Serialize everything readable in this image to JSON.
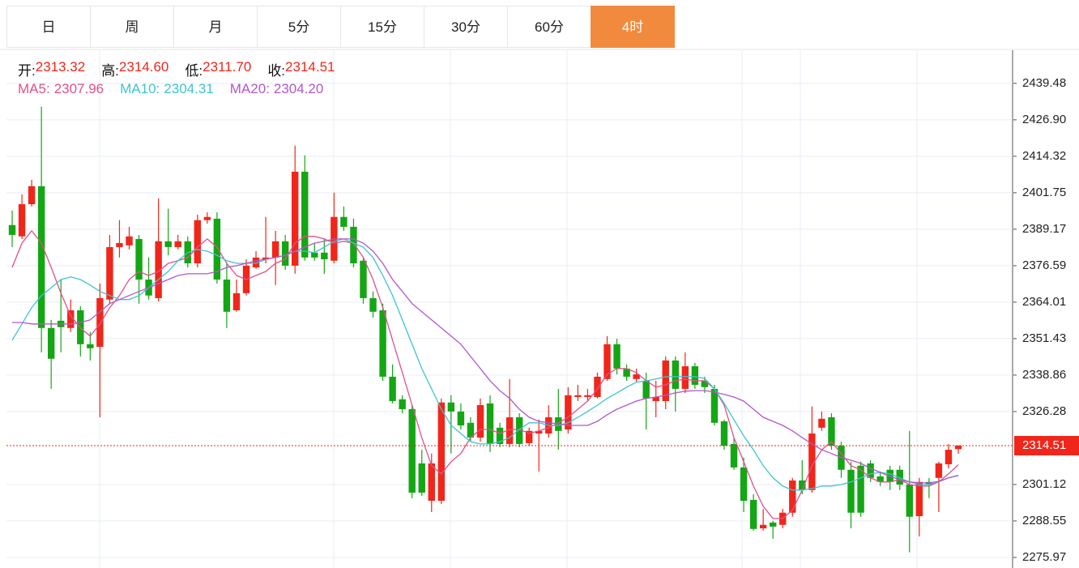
{
  "tabs": [
    "日",
    "周",
    "月",
    "5分",
    "15分",
    "30分",
    "60分",
    "4时"
  ],
  "active_tab": 7,
  "chart_data": {
    "type": "candlestick",
    "ohlc_labels": [
      "开:",
      "高:",
      "低:",
      "收:"
    ],
    "ohlc_value_labels": [
      "2313.32",
      "2314.60",
      "2311.70",
      "2314.51"
    ],
    "up_color": "#f0261b",
    "down_color": "#14a614",
    "label_color": "#111111",
    "open": [
      2390.6,
      2386.7,
      2397.8,
      2404.0,
      2355.1,
      2357.6,
      2355.1,
      2361.2,
      2349.5,
      2348.6,
      2364.9,
      2383.0,
      2383.6,
      2385.8,
      2371.8,
      2365.4,
      2385.0,
      2383.0,
      2385.0,
      2377.4,
      2392.3,
      2392.8,
      2371.8,
      2361.2,
      2367.1,
      2376.0,
      2378.8,
      2379.4,
      2385.0,
      2376.6,
      2409.0,
      2381.1,
      2381.1,
      2378.3,
      2393.4,
      2390.0,
      2378.3,
      2365.4,
      2361.2,
      2338.3,
      2330.5,
      2327.1,
      2308.4,
      2295.5,
      2295.5,
      2329.4,
      2326.3,
      2322.4,
      2317.3,
      2329.1,
      2320.7,
      2315.1,
      2324.3,
      2315.4,
      2318.7,
      2318.7,
      2324.3,
      2320.1,
      2331.3,
      2331.3,
      2331.3,
      2337.5,
      2349.5,
      2341.1,
      2337.5,
      2336.9,
      2329.9,
      2329.9,
      2343.9,
      2334.1,
      2341.9,
      2336.9,
      2334.1,
      2322.9,
      2315.1,
      2307.0,
      2295.8,
      2286.0,
      2288.0,
      2287.2,
      2291.4,
      2302.5,
      2299.2,
      2320.7,
      2324.3,
      2314.5,
      2306.2,
      2307.6,
      2308.4,
      2303.9,
      2306.2,
      2306.2,
      2301.1,
      2290.2,
      2302.0,
      2303.4,
      2308.1,
      2313.32
    ],
    "high": [
      2395.6,
      2401.2,
      2406.2,
      2431.4,
      2357.9,
      2371.8,
      2364.9,
      2362.6,
      2353.7,
      2370.4,
      2387.2,
      2392.3,
      2390.0,
      2387.2,
      2379.4,
      2399.8,
      2396.2,
      2387.2,
      2386.7,
      2394.2,
      2395.0,
      2395.0,
      2377.4,
      2371.8,
      2378.8,
      2381.6,
      2393.4,
      2388.6,
      2387.2,
      2418.0,
      2414.6,
      2384.4,
      2385.8,
      2401.8,
      2397.0,
      2392.8,
      2379.4,
      2367.7,
      2363.5,
      2342.5,
      2331.9,
      2328.5,
      2313.1,
      2311.8,
      2330.8,
      2331.9,
      2329.1,
      2324.3,
      2330.8,
      2331.9,
      2322.4,
      2337.5,
      2325.7,
      2320.7,
      2323.5,
      2328.5,
      2334.1,
      2334.7,
      2335.5,
      2334.1,
      2339.7,
      2352.3,
      2351.4,
      2342.5,
      2341.1,
      2339.7,
      2336.9,
      2345.3,
      2345.3,
      2346.7,
      2343.1,
      2338.3,
      2335.5,
      2323.5,
      2317.3,
      2310.4,
      2297.8,
      2292.7,
      2288.6,
      2292.7,
      2303.4,
      2309.5,
      2328.0,
      2326.3,
      2325.7,
      2315.9,
      2309.0,
      2309.0,
      2309.5,
      2305.6,
      2307.6,
      2307.6,
      2319.6,
      2303.4,
      2303.4,
      2309.0,
      2315.1,
      2314.6
    ],
    "low": [
      2383.0,
      2385.8,
      2397.0,
      2346.7,
      2334.1,
      2346.7,
      2353.7,
      2345.3,
      2343.9,
      2324.3,
      2363.5,
      2379.4,
      2382.2,
      2363.5,
      2364.9,
      2364.3,
      2380.2,
      2382.2,
      2376.0,
      2376.0,
      2391.1,
      2370.4,
      2355.1,
      2360.7,
      2366.3,
      2375.5,
      2377.4,
      2369.9,
      2375.2,
      2373.8,
      2378.3,
      2378.3,
      2373.8,
      2377.4,
      2388.6,
      2376.0,
      2363.5,
      2358.7,
      2336.9,
      2329.1,
      2325.7,
      2296.4,
      2297.2,
      2291.6,
      2294.4,
      2311.8,
      2320.1,
      2315.9,
      2315.9,
      2312.3,
      2314.0,
      2314.0,
      2314.0,
      2314.5,
      2305.6,
      2317.3,
      2313.1,
      2318.7,
      2329.9,
      2329.9,
      2330.8,
      2336.9,
      2339.1,
      2336.9,
      2336.4,
      2320.1,
      2324.3,
      2327.1,
      2326.3,
      2332.7,
      2334.1,
      2332.7,
      2321.5,
      2313.1,
      2306.2,
      2291.6,
      2285.2,
      2285.2,
      2282.4,
      2286.0,
      2290.0,
      2297.8,
      2298.3,
      2319.6,
      2313.1,
      2303.4,
      2286.0,
      2290.0,
      2302.0,
      2300.6,
      2299.2,
      2299.2,
      2277.7,
      2283.2,
      2296.4,
      2291.6,
      2306.7,
      2311.7
    ],
    "close": [
      2387.2,
      2397.8,
      2404.0,
      2355.1,
      2344.5,
      2355.4,
      2361.2,
      2349.5,
      2348.1,
      2365.4,
      2383.0,
      2384.4,
      2386.7,
      2371.8,
      2366.3,
      2385.0,
      2383.0,
      2385.0,
      2377.4,
      2392.3,
      2393.4,
      2371.8,
      2360.7,
      2367.1,
      2376.6,
      2379.4,
      2379.4,
      2385.0,
      2376.6,
      2409.0,
      2379.4,
      2379.4,
      2378.8,
      2393.4,
      2390.0,
      2377.4,
      2365.4,
      2360.7,
      2338.3,
      2329.9,
      2327.1,
      2298.3,
      2298.3,
      2308.4,
      2329.4,
      2326.3,
      2321.5,
      2317.3,
      2328.5,
      2315.1,
      2315.1,
      2324.3,
      2315.1,
      2319.6,
      2319.6,
      2324.3,
      2319.6,
      2331.9,
      2331.9,
      2331.9,
      2338.3,
      2349.5,
      2341.1,
      2338.3,
      2339.1,
      2330.8,
      2331.3,
      2343.9,
      2334.1,
      2341.9,
      2335.5,
      2334.7,
      2322.4,
      2314.5,
      2307.0,
      2295.5,
      2285.8,
      2287.2,
      2286.6,
      2291.4,
      2302.5,
      2299.2,
      2318.7,
      2323.8,
      2314.5,
      2306.2,
      2291.4,
      2291.4,
      2303.4,
      2302.0,
      2302.0,
      2301.1,
      2290.0,
      2302.0,
      2301.1,
      2308.4,
      2313.1,
      2314.51
    ],
    "ma": [
      {
        "name": "MA5:",
        "color": "#e2508c",
        "last_label": "2307.96",
        "values": [
          2376.0,
          2384.4,
          2388.6,
          2384.4,
          2376.0,
          2367.1,
          2359.3,
          2355.1,
          2352.3,
          2356.5,
          2362.1,
          2366.3,
          2371.8,
          2374.6,
          2373.2,
          2374.6,
          2377.4,
          2378.3,
          2379.4,
          2383.0,
          2385.8,
          2383.0,
          2377.4,
          2373.2,
          2371.8,
          2373.2,
          2374.6,
          2377.4,
          2378.8,
          2384.4,
          2386.7,
          2386.7,
          2385.8,
          2384.4,
          2385.0,
          2384.4,
          2379.4,
          2371.8,
          2362.1,
          2350.9,
          2339.7,
          2328.5,
          2317.3,
          2307.6,
          2304.8,
          2309.0,
          2311.8,
          2317.3,
          2320.1,
          2320.1,
          2318.7,
          2320.1,
          2320.1,
          2318.7,
          2319.6,
          2320.7,
          2322.4,
          2324.3,
          2327.1,
          2329.9,
          2334.1,
          2339.1,
          2341.1,
          2341.1,
          2339.7,
          2336.9,
          2334.7,
          2335.5,
          2336.9,
          2337.5,
          2336.9,
          2336.9,
          2334.1,
          2328.5,
          2317.3,
          2309.0,
          2300.6,
          2293.6,
          2289.4,
          2289.4,
          2292.3,
          2299.2,
          2307.6,
          2313.1,
          2315.9,
          2311.8,
          2307.6,
          2306.2,
          2303.4,
          2302.0,
          2302.0,
          2302.8,
          2301.1,
          2300.6,
          2300.6,
          2302.0,
          2304.8,
          2307.96
        ]
      },
      {
        "name": "MA10:",
        "color": "#3fc3d2",
        "last_label": "2304.31",
        "values": [
          2350.9,
          2356.5,
          2362.1,
          2366.3,
          2369.0,
          2371.8,
          2372.7,
          2371.8,
          2369.9,
          2367.7,
          2366.3,
          2364.9,
          2364.9,
          2366.3,
          2369.0,
          2371.8,
          2374.6,
          2378.3,
          2381.1,
          2382.2,
          2381.6,
          2380.2,
          2378.3,
          2377.4,
          2377.4,
          2377.4,
          2378.8,
          2379.4,
          2380.2,
          2381.6,
          2381.6,
          2381.1,
          2383.0,
          2385.0,
          2385.8,
          2384.4,
          2383.0,
          2379.4,
          2373.2,
          2366.3,
          2357.9,
          2349.5,
          2341.1,
          2334.1,
          2327.1,
          2321.5,
          2318.7,
          2315.9,
          2315.1,
          2315.1,
          2315.9,
          2317.3,
          2320.1,
          2322.4,
          2322.4,
          2321.5,
          2321.5,
          2322.4,
          2324.3,
          2326.3,
          2328.5,
          2330.8,
          2332.7,
          2334.7,
          2336.4,
          2336.9,
          2337.5,
          2338.3,
          2338.3,
          2338.3,
          2338.3,
          2337.7,
          2334.1,
          2329.1,
          2323.5,
          2317.9,
          2313.1,
          2307.6,
          2303.4,
          2300.6,
          2299.2,
          2299.2,
          2299.7,
          2300.6,
          2300.6,
          2301.1,
          2302.0,
          2303.4,
          2304.8,
          2305.3,
          2304.8,
          2303.4,
          2302.0,
          2301.1,
          2301.1,
          2302.0,
          2303.4,
          2304.31
        ]
      },
      {
        "name": "MA20:",
        "color": "#b257c9",
        "last_label": "2304.20",
        "values": [
          2357.0,
          2357.0,
          2356.5,
          2356.5,
          2356.5,
          2356.5,
          2356.5,
          2357.0,
          2357.9,
          2360.7,
          2363.5,
          2364.9,
          2366.3,
          2367.7,
          2369.0,
          2370.4,
          2371.8,
          2373.2,
          2373.8,
          2373.8,
          2373.8,
          2374.6,
          2376.0,
          2376.6,
          2377.4,
          2378.3,
          2378.8,
          2379.4,
          2380.2,
          2381.6,
          2383.0,
          2384.4,
          2385.0,
          2385.8,
          2385.8,
          2385.8,
          2384.4,
          2381.6,
          2377.4,
          2371.8,
          2367.7,
          2363.5,
          2360.7,
          2357.9,
          2355.1,
          2352.3,
          2349.5,
          2345.3,
          2341.1,
          2336.9,
          2333.5,
          2330.8,
          2327.1,
          2324.3,
          2322.9,
          2322.4,
          2322.1,
          2321.5,
          2321.5,
          2321.5,
          2322.9,
          2325.2,
          2327.1,
          2328.5,
          2329.9,
          2330.8,
          2331.3,
          2331.9,
          2332.7,
          2333.3,
          2333.5,
          2333.5,
          2333.0,
          2332.2,
          2331.3,
          2329.9,
          2327.1,
          2324.3,
          2322.9,
          2321.5,
          2319.6,
          2317.3,
          2315.1,
          2313.1,
          2311.8,
          2310.4,
          2309.5,
          2308.4,
          2306.7,
          2305.3,
          2303.9,
          2302.8,
          2302.0,
          2301.7,
          2301.7,
          2302.2,
          2303.4,
          2304.2
        ]
      }
    ],
    "ylim": [
      2272.6,
      2450.9
    ],
    "yticks": [
      {
        "value": 2439.48,
        "label": "2439.48"
      },
      {
        "value": 2426.9,
        "label": "2426.90"
      },
      {
        "value": 2414.32,
        "label": "2414.32"
      },
      {
        "value": 2401.75,
        "label": "2401.75"
      },
      {
        "value": 2389.17,
        "label": "2389.17"
      },
      {
        "value": 2376.59,
        "label": "2376.59"
      },
      {
        "value": 2364.01,
        "label": "2364.01"
      },
      {
        "value": 2351.43,
        "label": "2351.43"
      },
      {
        "value": 2338.86,
        "label": "2338.86"
      },
      {
        "value": 2326.28,
        "label": "2326.28"
      },
      {
        "value": 2301.12,
        "label": "2301.12"
      },
      {
        "value": 2288.55,
        "label": "2288.55"
      },
      {
        "value": 2275.97,
        "label": "2275.97"
      }
    ],
    "grid": true
  }
}
